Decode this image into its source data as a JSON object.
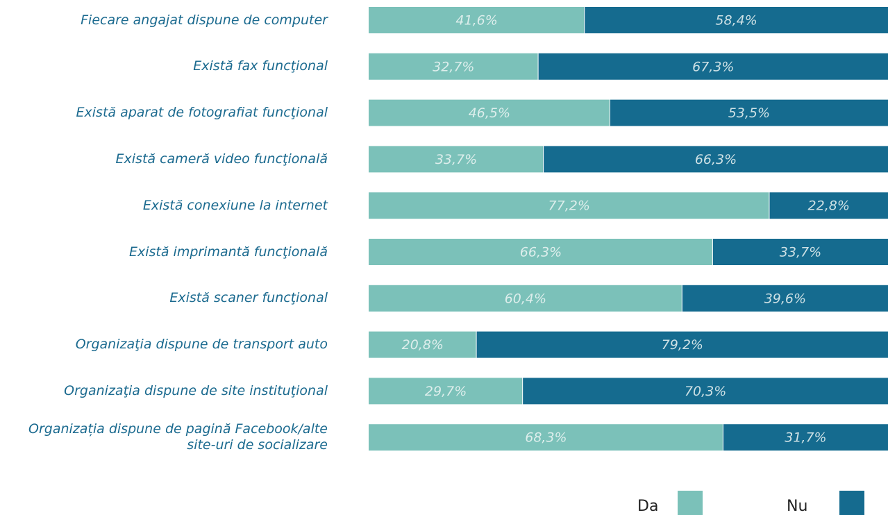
{
  "chart_data": {
    "type": "stacked-bar-horizontal",
    "categories": [
      "Fiecare angajat dispune de computer",
      "Există fax funcţional",
      "Există aparat de fotografiat funcţional",
      "Există cameră video funcţională",
      "Există conexiune la internet",
      "Există imprimantă funcţională",
      "Există scaner funcţional",
      "Organizaţia dispune de transport auto",
      "Organizaţia dispune de site instituţional",
      "Organizația dispune de pagină Facebook/alte site-uri de socializare"
    ],
    "series": [
      {
        "name": "Da",
        "color": "#7bc1b9",
        "values": [
          41.6,
          32.7,
          46.5,
          33.7,
          77.2,
          66.3,
          60.4,
          20.8,
          29.7,
          68.3
        ],
        "value_labels": [
          "41,6%",
          "32,7%",
          "46,5%",
          "33,7%",
          "77,2%",
          "66,3%",
          "60,4%",
          "20,8%",
          "29,7%",
          "68,3%"
        ]
      },
      {
        "name": "Nu",
        "color": "#156b8f",
        "values": [
          58.4,
          67.3,
          53.5,
          66.3,
          22.8,
          33.7,
          39.6,
          79.2,
          70.3,
          31.7
        ],
        "value_labels": [
          "58,4%",
          "67,3%",
          "53,5%",
          "66,3%",
          "22,8%",
          "33,7%",
          "39,6%",
          "79,2%",
          "70,3%",
          "31,7%"
        ]
      }
    ],
    "xlim": [
      0,
      100
    ]
  }
}
